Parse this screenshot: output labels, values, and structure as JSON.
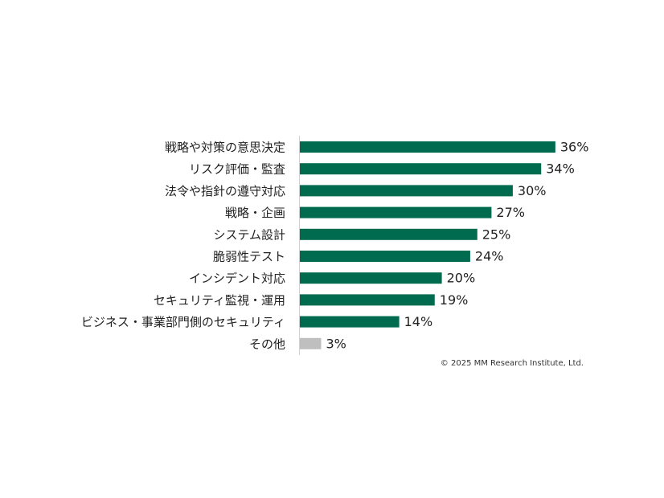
{
  "chart_data": {
    "type": "bar",
    "orientation": "horizontal",
    "categories": [
      "戦略や対策の意思決定",
      "リスク評価・監査",
      "法令や指針の遵守対応",
      "戦略・企画",
      "システム設計",
      "脆弱性テスト",
      "インシデント対応",
      "セキュリティ監視・運用",
      "ビジネス・事業部門側のセキュリティ",
      "その他"
    ],
    "values": [
      36,
      34,
      30,
      27,
      25,
      24,
      20,
      19,
      14,
      3
    ],
    "value_labels": [
      "36%",
      "34%",
      "30%",
      "27%",
      "25%",
      "24%",
      "20%",
      "19%",
      "14%",
      "3%"
    ],
    "colors": [
      "#006b4f",
      "#006b4f",
      "#006b4f",
      "#006b4f",
      "#006b4f",
      "#006b4f",
      "#006b4f",
      "#006b4f",
      "#006b4f",
      "#bfbfbf"
    ],
    "note": "© 2025 MM Research Institute, Ltd."
  }
}
